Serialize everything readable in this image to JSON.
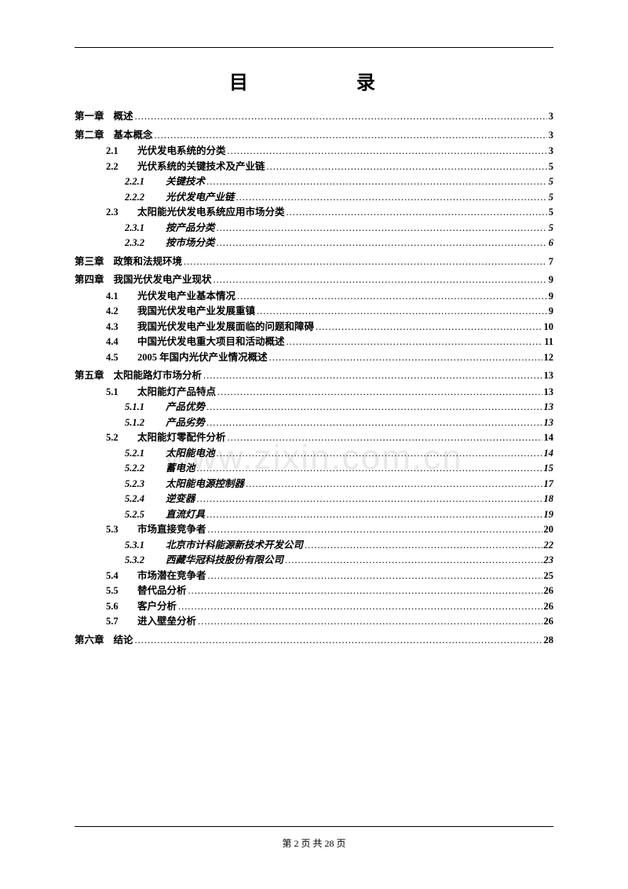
{
  "title": "目　　录",
  "watermark": "www.zixin.com.cn",
  "footer": "第 2 页  共 28 页",
  "toc": [
    {
      "level": "chapter",
      "num": "第一章",
      "label": "概述",
      "page": "3"
    },
    {
      "level": "chapter",
      "num": "第二章",
      "label": "基本概念",
      "page": "3"
    },
    {
      "level": "sec",
      "num": "2.1",
      "label": "光伏发电系统的分类",
      "page": "3"
    },
    {
      "level": "sec",
      "num": "2.2",
      "label": "光伏系统的关键技术及产业链",
      "page": "5"
    },
    {
      "level": "sub",
      "num": "2.2.1",
      "label": "关键技术",
      "page": "5"
    },
    {
      "level": "sub",
      "num": "2.2.2",
      "label": "光伏发电产业链",
      "page": "5"
    },
    {
      "level": "sec",
      "num": "2.3",
      "label": "太阳能光伏发电系统应用市场分类",
      "page": "5"
    },
    {
      "level": "sub",
      "num": "2.3.1",
      "label": "按产品分类",
      "page": "5"
    },
    {
      "level": "sub",
      "num": "2.3.2",
      "label": "按市场分类",
      "page": "6"
    },
    {
      "level": "chapter",
      "num": "第三章",
      "label": "政策和法规环境",
      "page": "7"
    },
    {
      "level": "chapter",
      "num": "第四章",
      "label": "我国光伏发电产业现状",
      "page": "9"
    },
    {
      "level": "sec",
      "num": "4.1",
      "label": "光伏发电产业基本情况",
      "page": "9"
    },
    {
      "level": "sec",
      "num": "4.2",
      "label": "我国光伏发电产业发展重镇",
      "page": "9"
    },
    {
      "level": "sec",
      "num": "4.3",
      "label": "我国光伏发电产业发展面临的问题和障碍",
      "page": "10"
    },
    {
      "level": "sec",
      "num": "4.4",
      "label": "中国光伏发电重大项目和活动概述",
      "page": "11"
    },
    {
      "level": "sec",
      "num": "4.5",
      "label": "2005 年国内光伏产业情况概述",
      "page": "12"
    },
    {
      "level": "chapter",
      "num": "第五章",
      "label": "太阳能路灯市场分析",
      "page": "13"
    },
    {
      "level": "sec",
      "num": "5.1",
      "label": "太阳能灯产品特点",
      "page": "13"
    },
    {
      "level": "sub",
      "num": "5.1.1",
      "label": "产品优势",
      "page": "13"
    },
    {
      "level": "sub",
      "num": "5.1.2",
      "label": "产品劣势",
      "page": "13"
    },
    {
      "level": "sec",
      "num": "5.2",
      "label": "太阳能灯零配件分析",
      "page": "14"
    },
    {
      "level": "sub",
      "num": "5.2.1",
      "label": "太阳能电池",
      "page": "14"
    },
    {
      "level": "sub",
      "num": "5.2.2",
      "label": "蓄电池",
      "page": "15"
    },
    {
      "level": "sub",
      "num": "5.2.3",
      "label": "太阳能电源控制器",
      "page": "17"
    },
    {
      "level": "sub",
      "num": "5.2.4",
      "label": "逆变器",
      "page": "18"
    },
    {
      "level": "sub",
      "num": "5.2.5",
      "label": "直流灯具",
      "page": "19"
    },
    {
      "level": "sec",
      "num": "5.3",
      "label": "市场直接竞争者",
      "page": "20"
    },
    {
      "level": "sub",
      "num": "5.3.1",
      "label": "北京市计科能源新技术开发公司",
      "page": "22"
    },
    {
      "level": "sub",
      "num": "5.3.2",
      "label": "西藏华冠科技股份有限公司",
      "page": "23"
    },
    {
      "level": "sec",
      "num": "5.4",
      "label": "市场潜在竞争者",
      "page": "25"
    },
    {
      "level": "sec",
      "num": "5.5",
      "label": "替代品分析",
      "page": "26"
    },
    {
      "level": "sec",
      "num": "5.6",
      "label": "客户分析",
      "page": "26"
    },
    {
      "level": "sec",
      "num": "5.7",
      "label": "进入壁垒分析",
      "page": "26"
    },
    {
      "level": "chapter",
      "num": "第六章",
      "label": "结论",
      "page": "28"
    }
  ]
}
